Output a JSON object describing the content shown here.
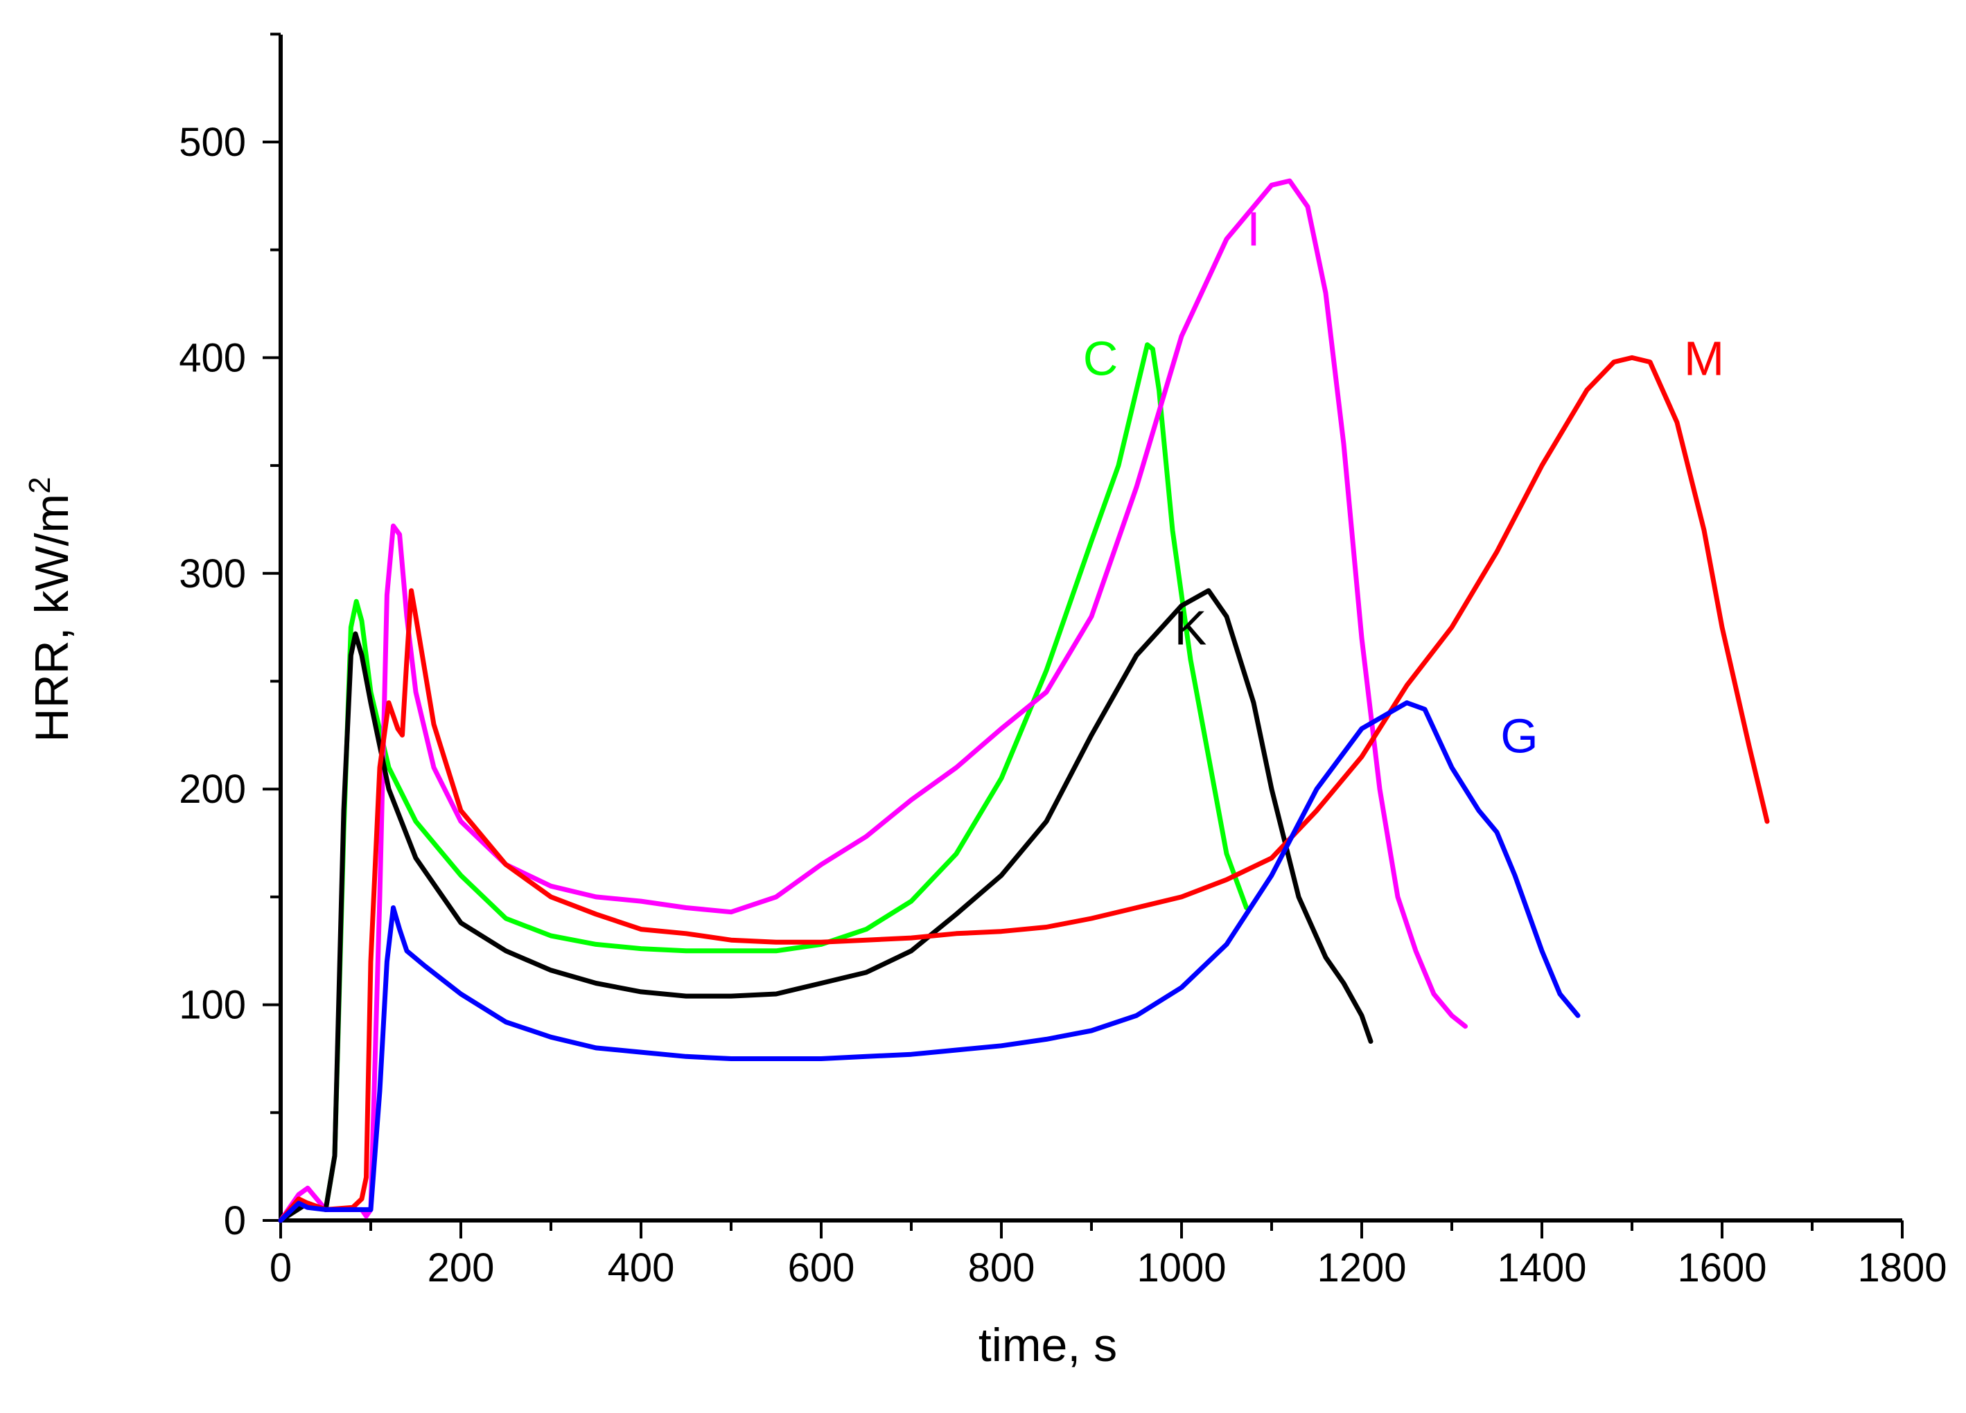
{
  "chart_data": {
    "type": "line",
    "title": "",
    "xlabel": "time, s",
    "ylabel": {
      "text": "HRR, kW/m",
      "superscript": "2"
    },
    "xlim": [
      0,
      1800
    ],
    "ylim": [
      0,
      550
    ],
    "xticks": [
      0,
      200,
      400,
      600,
      800,
      1000,
      1200,
      1400,
      1600,
      1800
    ],
    "yticks": [
      0,
      100,
      200,
      300,
      400,
      500
    ],
    "x_minor_step": 100,
    "y_minor_step": 50,
    "grid": false,
    "series": [
      {
        "name": "C",
        "color": "#00ff00",
        "label_at": [
          910,
          400
        ],
        "x": [
          0,
          20,
          50,
          60,
          70,
          78,
          84,
          90,
          100,
          120,
          150,
          200,
          250,
          300,
          350,
          400,
          450,
          500,
          550,
          600,
          650,
          700,
          750,
          800,
          850,
          900,
          930,
          950,
          962,
          968,
          975,
          990,
          1010,
          1030,
          1050,
          1072
        ],
        "y": [
          0,
          8,
          5,
          30,
          180,
          275,
          287,
          278,
          245,
          210,
          185,
          160,
          140,
          132,
          128,
          126,
          125,
          125,
          125,
          128,
          135,
          148,
          170,
          205,
          255,
          315,
          350,
          385,
          406,
          404,
          385,
          320,
          260,
          215,
          170,
          145
        ]
      },
      {
        "name": "I",
        "color": "#ff00ff",
        "label_at": [
          1080,
          460
        ],
        "x": [
          0,
          20,
          30,
          50,
          80,
          90,
          95,
          100,
          110,
          118,
          125,
          132,
          140,
          150,
          170,
          200,
          250,
          300,
          350,
          400,
          450,
          500,
          550,
          600,
          650,
          700,
          750,
          800,
          850,
          900,
          950,
          1000,
          1050,
          1100,
          1120,
          1140,
          1160,
          1180,
          1200,
          1220,
          1240,
          1260,
          1280,
          1300,
          1315
        ],
        "y": [
          0,
          12,
          15,
          5,
          5,
          5,
          2,
          5,
          150,
          290,
          322,
          318,
          280,
          245,
          210,
          185,
          165,
          155,
          150,
          148,
          145,
          143,
          150,
          165,
          178,
          195,
          210,
          228,
          245,
          280,
          340,
          410,
          455,
          480,
          482,
          470,
          430,
          360,
          270,
          200,
          150,
          125,
          105,
          95,
          90
        ]
      },
      {
        "name": "K",
        "color": "#000000",
        "label_at": [
          1010,
          275
        ],
        "x": [
          0,
          30,
          50,
          60,
          70,
          78,
          83,
          90,
          100,
          120,
          150,
          200,
          250,
          300,
          350,
          400,
          450,
          500,
          550,
          600,
          650,
          700,
          750,
          800,
          850,
          900,
          950,
          1000,
          1030,
          1050,
          1080,
          1100,
          1130,
          1160,
          1180,
          1200,
          1210
        ],
        "y": [
          0,
          8,
          5,
          30,
          190,
          262,
          272,
          262,
          240,
          200,
          168,
          138,
          125,
          116,
          110,
          106,
          104,
          104,
          105,
          110,
          115,
          125,
          142,
          160,
          185,
          225,
          262,
          285,
          292,
          280,
          240,
          200,
          150,
          122,
          110,
          95,
          83
        ]
      },
      {
        "name": "M",
        "color": "#ff0000",
        "label_at": [
          1580,
          400
        ],
        "x": [
          0,
          20,
          30,
          50,
          80,
          90,
          95,
          100,
          110,
          120,
          130,
          135,
          140,
          145,
          150,
          170,
          200,
          250,
          300,
          350,
          400,
          450,
          500,
          550,
          600,
          650,
          700,
          750,
          800,
          850,
          900,
          950,
          1000,
          1050,
          1100,
          1150,
          1200,
          1250,
          1300,
          1350,
          1400,
          1450,
          1480,
          1500,
          1520,
          1550,
          1580,
          1600,
          1630,
          1650
        ],
        "y": [
          0,
          10,
          8,
          5,
          6,
          10,
          20,
          120,
          210,
          240,
          228,
          225,
          260,
          292,
          280,
          230,
          190,
          165,
          150,
          142,
          135,
          133,
          130,
          129,
          129,
          130,
          131,
          133,
          134,
          136,
          140,
          145,
          150,
          158,
          168,
          190,
          215,
          248,
          275,
          310,
          350,
          385,
          398,
          400,
          398,
          370,
          320,
          275,
          220,
          185
        ]
      },
      {
        "name": "G",
        "color": "#0000ff",
        "label_at": [
          1375,
          225
        ],
        "x": [
          0,
          20,
          30,
          50,
          80,
          90,
          95,
          100,
          110,
          118,
          125,
          132,
          140,
          160,
          200,
          250,
          300,
          350,
          400,
          450,
          500,
          550,
          600,
          650,
          700,
          750,
          800,
          850,
          900,
          950,
          1000,
          1050,
          1100,
          1150,
          1200,
          1250,
          1270,
          1300,
          1330,
          1350,
          1370,
          1400,
          1420,
          1440
        ],
        "y": [
          0,
          8,
          6,
          5,
          5,
          5,
          5,
          5,
          60,
          120,
          145,
          135,
          125,
          118,
          105,
          92,
          85,
          80,
          78,
          76,
          75,
          75,
          75,
          76,
          77,
          79,
          81,
          84,
          88,
          95,
          108,
          128,
          160,
          200,
          228,
          240,
          237,
          210,
          190,
          180,
          160,
          125,
          105,
          95
        ]
      }
    ]
  }
}
